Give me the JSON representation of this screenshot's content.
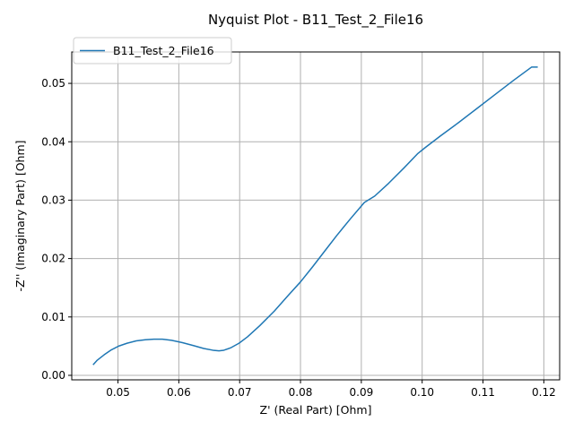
{
  "chart_data": {
    "type": "line",
    "title": "Nyquist Plot - B11_Test_2_File16",
    "xlabel": "Z' (Real Part) [Ohm]",
    "ylabel": "-Z'' (Imaginary Part) [Ohm]",
    "xlim": [
      0.0424,
      0.1226
    ],
    "ylim": [
      -0.00077,
      0.05538
    ],
    "xticks": [
      0.05,
      0.06,
      0.07,
      0.08,
      0.09,
      0.1,
      0.11,
      0.12
    ],
    "xtick_labels": [
      "0.05",
      "0.06",
      "0.07",
      "0.08",
      "0.09",
      "0.10",
      "0.11",
      "0.12"
    ],
    "yticks": [
      0.0,
      0.01,
      0.02,
      0.03,
      0.04,
      0.05
    ],
    "ytick_labels": [
      "0.00",
      "0.01",
      "0.02",
      "0.03",
      "0.04",
      "0.05"
    ],
    "grid": true,
    "legend_position": "top-left",
    "series": [
      {
        "name": "B11_Test_2_File16",
        "color": "#1f77b4",
        "x": [
          0.0459,
          0.0466,
          0.0477,
          0.0488,
          0.0501,
          0.0515,
          0.053,
          0.0545,
          0.0559,
          0.0573,
          0.0588,
          0.0606,
          0.0624,
          0.0641,
          0.0656,
          0.0666,
          0.0674,
          0.0685,
          0.0699,
          0.0713,
          0.0733,
          0.0757,
          0.078,
          0.08,
          0.082,
          0.084,
          0.086,
          0.0882,
          0.0905,
          0.0922,
          0.0945,
          0.097,
          0.0993,
          0.1005,
          0.103,
          0.106,
          0.109,
          0.112,
          0.115,
          0.118,
          0.119
        ],
        "y": [
          0.0018,
          0.0026,
          0.0035,
          0.0043,
          0.005,
          0.0055,
          0.0059,
          0.0061,
          0.0062,
          0.0062,
          0.006,
          0.0056,
          0.0051,
          0.0046,
          0.0043,
          0.0042,
          0.0043,
          0.0047,
          0.0055,
          0.0066,
          0.0085,
          0.011,
          0.0137,
          0.016,
          0.0186,
          0.0213,
          0.024,
          0.0268,
          0.0296,
          0.0307,
          0.0329,
          0.0355,
          0.038,
          0.039,
          0.041,
          0.0433,
          0.0457,
          0.0481,
          0.0505,
          0.0528,
          0.0528
        ]
      }
    ]
  }
}
